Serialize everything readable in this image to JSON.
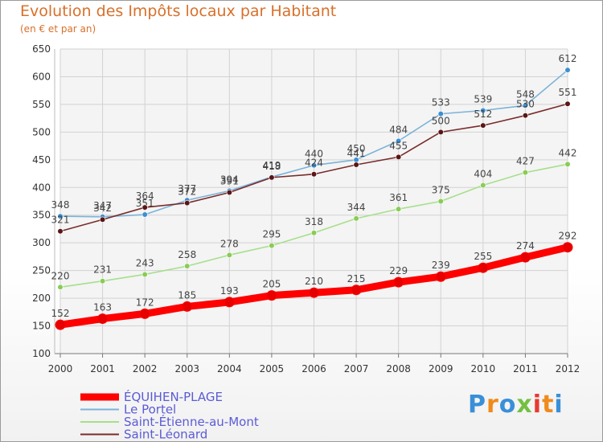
{
  "title": "Evolution des Impôts locaux par Habitant",
  "subtitle": "(en € et par an)",
  "logo": "Proxiti",
  "chart_data": {
    "type": "line",
    "title": "Evolution des Impôts locaux par Habitant",
    "subtitle": "(en € et par an)",
    "xlabel": "",
    "ylabel": "",
    "x": [
      2000,
      2001,
      2002,
      2003,
      2004,
      2005,
      2006,
      2007,
      2008,
      2009,
      2010,
      2011,
      2012
    ],
    "ylim": [
      100,
      650
    ],
    "yticks": [
      100,
      150,
      200,
      250,
      300,
      350,
      400,
      450,
      500,
      550,
      600,
      650
    ],
    "grid": true,
    "legend_position": "bottom-left",
    "series": [
      {
        "name": "ÉQUIHEN-PLAGE",
        "color": "#ff0000",
        "values": [
          152,
          163,
          172,
          185,
          193,
          205,
          210,
          215,
          229,
          239,
          255,
          274,
          292
        ]
      },
      {
        "name": "Le Portel",
        "color": "#7ab3d8",
        "marker": "#3d8fd1",
        "values": [
          348,
          347,
          351,
          377,
          394,
          419,
          440,
          450,
          484,
          533,
          539,
          548,
          612
        ]
      },
      {
        "name": "Saint-Étienne-au-Mont",
        "color": "#a7df8c",
        "marker": "#88cc55",
        "values": [
          220,
          231,
          243,
          258,
          278,
          295,
          318,
          344,
          361,
          375,
          404,
          427,
          442
        ]
      },
      {
        "name": "Saint-Léonard",
        "color": "#7a2b2b",
        "marker": "#5a1515",
        "values": [
          321,
          342,
          364,
          372,
          391,
          418,
          424,
          441,
          455,
          500,
          512,
          530,
          551
        ]
      }
    ]
  }
}
